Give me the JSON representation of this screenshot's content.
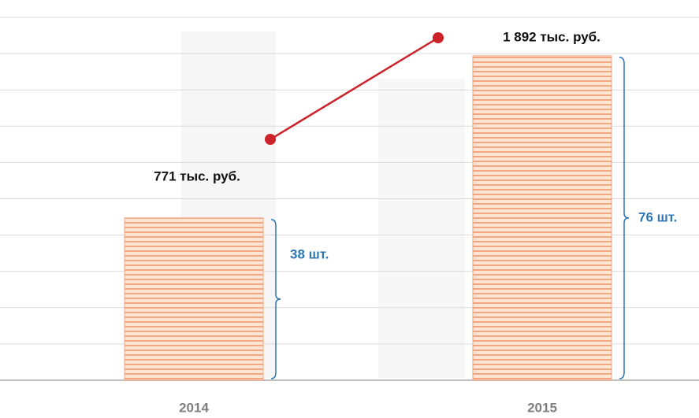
{
  "chart_data": {
    "type": "bar",
    "categories": [
      "2014",
      "2015"
    ],
    "series": [
      {
        "type": "bar",
        "color": "#f4a582",
        "values": [
          38,
          76
        ],
        "value_labels": [
          "38 шт.",
          "76 шт."
        ]
      },
      {
        "type": "line",
        "axis": "y2",
        "color": "#cc2229",
        "values": [
          771,
          1892
        ],
        "value_labels": [
          "771 тыс. руб.",
          "1 892 тыс. руб."
        ]
      }
    ],
    "ylim": [
      0,
      85
    ],
    "y2lim": [
      -1888,
      2118
    ],
    "grid": true
  }
}
